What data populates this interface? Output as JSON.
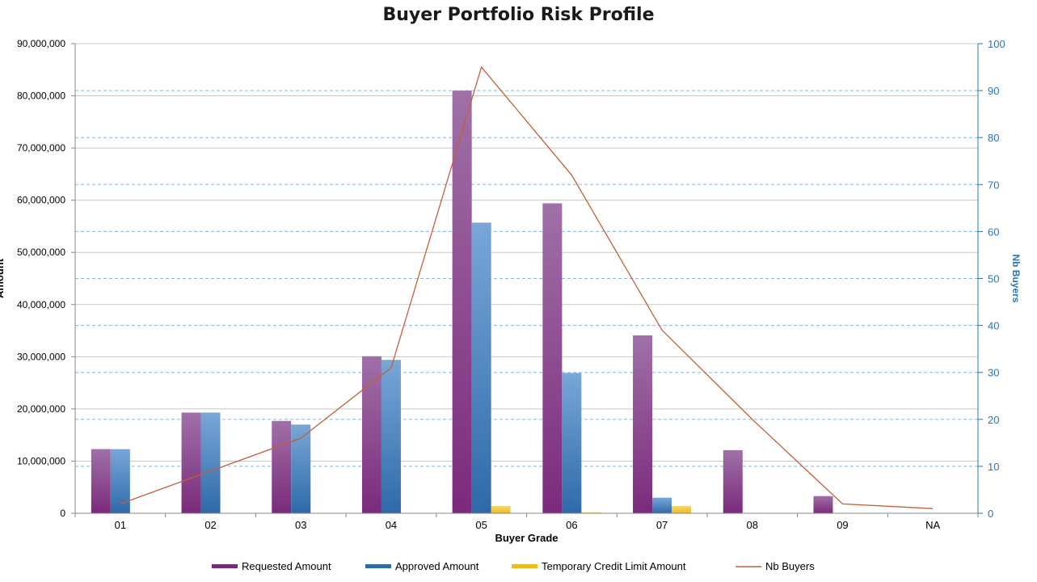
{
  "chart_data": {
    "type": "bar",
    "title": "Buyer Portfolio Risk Profile",
    "xlabel": "Buyer Grade",
    "ylabel": "Amount",
    "y2label": "Nb Buyers",
    "categories": [
      "01",
      "02",
      "03",
      "04",
      "05",
      "06",
      "07",
      "08",
      "09",
      "NA"
    ],
    "ylim": [
      0,
      90000000
    ],
    "y2lim": [
      0,
      100
    ],
    "y_ticks": [
      "0",
      "10,000,000",
      "20,000,000",
      "30,000,000",
      "40,000,000",
      "50,000,000",
      "60,000,000",
      "70,000,000",
      "80,000,000",
      "90,000,000"
    ],
    "y2_ticks": [
      "0",
      "10",
      "20",
      "30",
      "40",
      "50",
      "60",
      "70",
      "80",
      "90",
      "100"
    ],
    "grid": true,
    "legend_position": "bottom",
    "series": [
      {
        "name": "Requested Amount",
        "type": "bar",
        "axis": "left",
        "color": "#7b2a7b",
        "color_light": "#a070a8",
        "values": [
          12300000,
          19300000,
          17700000,
          30100000,
          81000000,
          59400000,
          34100000,
          12100000,
          3300000,
          0
        ]
      },
      {
        "name": "Approved Amount",
        "type": "bar",
        "axis": "left",
        "color": "#2e6aa8",
        "color_light": "#7aa6d8",
        "values": [
          12300000,
          19300000,
          17000000,
          29400000,
          55700000,
          26900000,
          3000000,
          0,
          0,
          0
        ]
      },
      {
        "name": "Temporary Credit Limit Amount",
        "type": "bar",
        "axis": "left",
        "color": "#f0b820",
        "color_light": "#f8d870",
        "values": [
          0,
          0,
          0,
          0,
          1400000,
          200000,
          1400000,
          0,
          0,
          0
        ]
      },
      {
        "name": "Nb Buyers",
        "type": "line",
        "axis": "right",
        "color": "#c0603a",
        "values": [
          2,
          9,
          16,
          31,
          95,
          72,
          39,
          20,
          2,
          1
        ]
      }
    ]
  }
}
